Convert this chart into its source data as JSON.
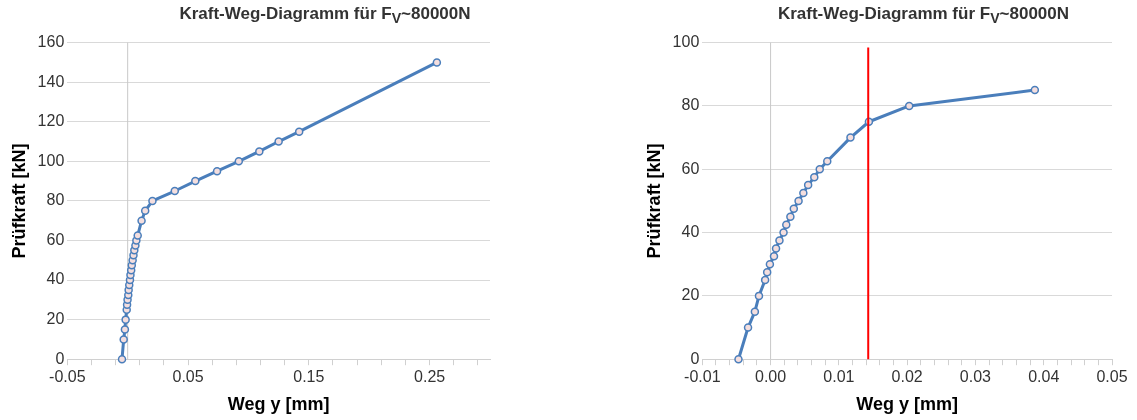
{
  "chart_data": [
    {
      "type": "line",
      "title": "Kraft-Weg-Diagramm für F$_{V}$~80000N",
      "xlabel": "Weg y [mm]",
      "ylabel": "Prüfkraft [kN]",
      "marker": "circle",
      "grid": "y",
      "legend": false,
      "xlim": [
        -0.05,
        0.3
      ],
      "ylim": [
        0,
        160
      ],
      "xticks": [
        {
          "value": -0.05,
          "label": "-0.05"
        },
        {
          "value": -0.03,
          "label": null
        },
        {
          "value": -0.01,
          "label": null
        },
        {
          "value": 0.01,
          "label": null
        },
        {
          "value": 0.03,
          "label": null
        },
        {
          "value": 0.05,
          "label": "0.05"
        },
        {
          "value": 0.07,
          "label": null
        },
        {
          "value": 0.09,
          "label": null
        },
        {
          "value": 0.11,
          "label": null
        },
        {
          "value": 0.13,
          "label": null
        },
        {
          "value": 0.15,
          "label": "0.15"
        },
        {
          "value": 0.17,
          "label": null
        },
        {
          "value": 0.19,
          "label": null
        },
        {
          "value": 0.21,
          "label": null
        },
        {
          "value": 0.23,
          "label": null
        },
        {
          "value": 0.25,
          "label": "0.25"
        },
        {
          "value": 0.27,
          "label": null
        },
        {
          "value": 0.29,
          "label": null
        }
      ],
      "yticks": [
        0,
        20,
        40,
        60,
        80,
        100,
        120,
        140,
        160
      ],
      "series": [
        {
          "color": "#4a7ebb",
          "x": [
            -0.0047,
            -0.0033,
            -0.0023,
            -0.0017,
            -0.0008,
            -0.0005,
            -0.0001,
            0.0005,
            0.0008,
            0.0013,
            0.0019,
            0.0023,
            0.0029,
            0.0034,
            0.0041,
            0.0048,
            0.0055,
            0.0064,
            0.0072,
            0.0083,
            0.0115,
            0.0145,
            0.0205,
            0.039,
            0.056,
            0.074,
            0.092,
            0.109,
            0.125,
            0.142,
            0.256
          ],
          "values": [
            0,
            10,
            15,
            20,
            25,
            27.5,
            30,
            32.5,
            35,
            37.5,
            40,
            42.5,
            45,
            47.5,
            50,
            52.5,
            55,
            57.5,
            60,
            62.5,
            70,
            75,
            80,
            85,
            90,
            95,
            100,
            105,
            110,
            115,
            150
          ]
        }
      ]
    },
    {
      "type": "line",
      "title": "Kraft-Weg-Diagramm für F$_{V}$~80000N",
      "xlabel": "Weg y [mm]",
      "ylabel": "Prüfkraft [kN]",
      "marker": "circle",
      "grid": "y",
      "legend": false,
      "xlim": [
        -0.01,
        0.05
      ],
      "ylim": [
        0,
        100
      ],
      "xticks": [
        -0.01,
        {
          "value": -0.008,
          "label": null
        },
        {
          "value": -0.006,
          "label": null
        },
        {
          "value": -0.004,
          "label": null
        },
        {
          "value": -0.002,
          "label": null
        },
        {
          "value": 0,
          "label": "0.00"
        },
        {
          "value": 0.002,
          "label": null
        },
        {
          "value": 0.004,
          "label": null
        },
        {
          "value": 0.006,
          "label": null
        },
        {
          "value": 0.008,
          "label": null
        },
        0.01,
        {
          "value": 0.012,
          "label": null
        },
        {
          "value": 0.014,
          "label": null
        },
        {
          "value": 0.016,
          "label": null
        },
        {
          "value": 0.018,
          "label": null
        },
        0.02,
        {
          "value": 0.022,
          "label": null
        },
        {
          "value": 0.024,
          "label": null
        },
        {
          "value": 0.026,
          "label": null
        },
        {
          "value": 0.028,
          "label": null
        },
        0.03,
        {
          "value": 0.032,
          "label": null
        },
        {
          "value": 0.034,
          "label": null
        },
        {
          "value": 0.036,
          "label": null
        },
        {
          "value": 0.038,
          "label": null
        },
        0.04,
        {
          "value": 0.042,
          "label": null
        },
        {
          "value": 0.044,
          "label": null
        },
        {
          "value": 0.046,
          "label": null
        },
        {
          "value": 0.048,
          "label": null
        },
        0.05
      ],
      "yticks": [
        0,
        20,
        40,
        60,
        80,
        100
      ],
      "ref_lines": [
        {
          "axis": "x",
          "value": 0.0143,
          "color": "#ff0000"
        }
      ],
      "series": [
        {
          "color": "#4a7ebb",
          "x": [
            -0.0047,
            -0.0033,
            -0.0023,
            -0.0017,
            -0.0008,
            -0.0005,
            -0.0001,
            0.0005,
            0.0008,
            0.0013,
            0.0019,
            0.0023,
            0.0029,
            0.0034,
            0.0041,
            0.0048,
            0.0055,
            0.0064,
            0.0072,
            0.0083,
            0.0117,
            0.0144,
            0.0203,
            0.0387
          ],
          "values": [
            0,
            10,
            15,
            20,
            25,
            27.5,
            30,
            32.5,
            35,
            37.5,
            40,
            42.5,
            45,
            47.5,
            50,
            52.5,
            55,
            57.5,
            60,
            62.5,
            70,
            75,
            80,
            85
          ]
        }
      ]
    }
  ]
}
